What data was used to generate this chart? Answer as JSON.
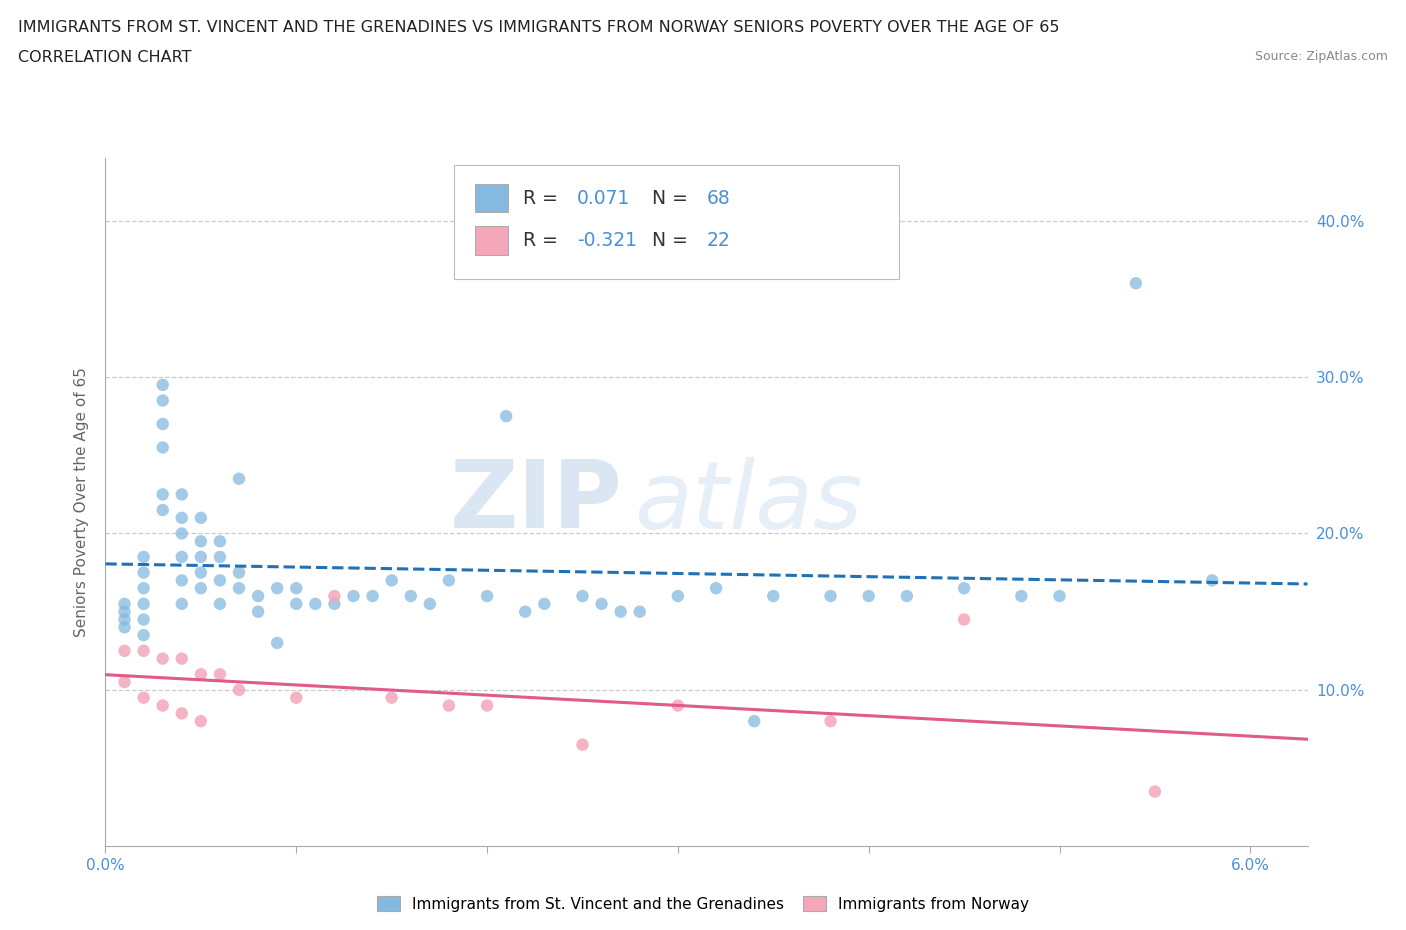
{
  "title_line1": "IMMIGRANTS FROM ST. VINCENT AND THE GRENADINES VS IMMIGRANTS FROM NORWAY SENIORS POVERTY OVER THE AGE OF 65",
  "title_line2": "CORRELATION CHART",
  "source_text": "Source: ZipAtlas.com",
  "ylabel": "Seniors Poverty Over the Age of 65",
  "xlim": [
    0.0,
    0.063
  ],
  "ylim": [
    0.0,
    0.44
  ],
  "ytick_positions": [
    0.1,
    0.2,
    0.3,
    0.4
  ],
  "ytick_labels_right": [
    "10.0%",
    "20.0%",
    "30.0%",
    "40.0%"
  ],
  "xtick_positions": [
    0.0,
    0.01,
    0.02,
    0.03,
    0.04,
    0.05,
    0.06
  ],
  "blue_color": "#85b9e0",
  "pink_color": "#f4a7b9",
  "trend_blue_color": "#2171b5",
  "trend_pink_color": "#e05a8a",
  "r_blue": 0.071,
  "n_blue": 68,
  "r_pink": -0.321,
  "n_pink": 22,
  "legend_label_blue": "Immigrants from St. Vincent and the Grenadines",
  "legend_label_pink": "Immigrants from Norway",
  "watermark_zip": "ZIP",
  "watermark_atlas": "atlas",
  "axis_color": "#4a90d9",
  "grid_color": "#cccccc",
  "title_color": "#222222",
  "source_color": "#888888",
  "blue_x": [
    0.001,
    0.001,
    0.001,
    0.001,
    0.002,
    0.002,
    0.002,
    0.002,
    0.002,
    0.002,
    0.003,
    0.003,
    0.003,
    0.003,
    0.003,
    0.003,
    0.004,
    0.004,
    0.004,
    0.004,
    0.004,
    0.004,
    0.005,
    0.005,
    0.005,
    0.005,
    0.005,
    0.006,
    0.006,
    0.006,
    0.006,
    0.007,
    0.007,
    0.007,
    0.008,
    0.008,
    0.009,
    0.009,
    0.01,
    0.01,
    0.011,
    0.012,
    0.013,
    0.014,
    0.015,
    0.016,
    0.017,
    0.018,
    0.02,
    0.021,
    0.022,
    0.023,
    0.025,
    0.026,
    0.027,
    0.028,
    0.03,
    0.032,
    0.034,
    0.035,
    0.038,
    0.04,
    0.042,
    0.045,
    0.048,
    0.05,
    0.054,
    0.058
  ],
  "blue_y": [
    0.155,
    0.15,
    0.145,
    0.14,
    0.185,
    0.175,
    0.165,
    0.155,
    0.145,
    0.135,
    0.295,
    0.285,
    0.27,
    0.255,
    0.225,
    0.215,
    0.225,
    0.21,
    0.2,
    0.185,
    0.17,
    0.155,
    0.21,
    0.195,
    0.185,
    0.175,
    0.165,
    0.195,
    0.185,
    0.17,
    0.155,
    0.235,
    0.175,
    0.165,
    0.16,
    0.15,
    0.165,
    0.13,
    0.165,
    0.155,
    0.155,
    0.155,
    0.16,
    0.16,
    0.17,
    0.16,
    0.155,
    0.17,
    0.16,
    0.275,
    0.15,
    0.155,
    0.16,
    0.155,
    0.15,
    0.15,
    0.16,
    0.165,
    0.08,
    0.16,
    0.16,
    0.16,
    0.16,
    0.165,
    0.16,
    0.16,
    0.36,
    0.17
  ],
  "pink_x": [
    0.001,
    0.001,
    0.002,
    0.002,
    0.003,
    0.003,
    0.004,
    0.004,
    0.005,
    0.005,
    0.006,
    0.007,
    0.01,
    0.012,
    0.015,
    0.018,
    0.02,
    0.025,
    0.03,
    0.038,
    0.045,
    0.055
  ],
  "pink_y": [
    0.125,
    0.105,
    0.125,
    0.095,
    0.12,
    0.09,
    0.12,
    0.085,
    0.11,
    0.08,
    0.11,
    0.1,
    0.095,
    0.16,
    0.095,
    0.09,
    0.09,
    0.065,
    0.09,
    0.08,
    0.145,
    0.035
  ]
}
